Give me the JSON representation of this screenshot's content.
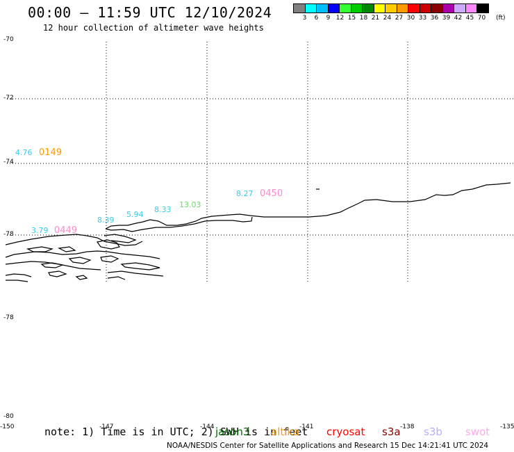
{
  "header": {
    "title": "00:00 – 11:59 UTC 12/10/2024",
    "subtitle": "12 hour collection of altimeter wave heights"
  },
  "scale": {
    "colors": [
      "#808080",
      "#00ffff",
      "#00bfff",
      "#0000ff",
      "#33ff33",
      "#00cc00",
      "#008800",
      "#ffff00",
      "#ffcc00",
      "#ff9900",
      "#ff0000",
      "#cc0000",
      "#880000",
      "#aa00aa",
      "#ccaaff",
      "#ff88ff",
      "#000000"
    ],
    "labels": [
      "3",
      "6",
      "9",
      "12",
      "15",
      "18",
      "21",
      "24",
      "27",
      "30",
      "33",
      "36",
      "39",
      "42",
      "45",
      "70"
    ],
    "unit": "(ft)"
  },
  "axes": {
    "lat_labels": [
      "-70",
      "-72",
      "-74",
      "-78",
      "-78",
      "-80"
    ],
    "lon_labels": [
      "-150",
      "-147",
      "-144",
      "-141",
      "-138",
      "-135"
    ]
  },
  "observations": [
    {
      "text": "4.76",
      "color": "#33ccee"
    },
    {
      "text": "0149",
      "color": "#ff9900"
    },
    {
      "text": "8.27",
      "color": "#33ccee"
    },
    {
      "text": "0450",
      "color": "#ff88cc"
    },
    {
      "text": "13.03",
      "color": "#66dd66"
    },
    {
      "text": "8.33",
      "color": "#33ccee"
    },
    {
      "text": "5.94",
      "color": "#33ccee"
    },
    {
      "text": "8.39",
      "color": "#33ccee"
    },
    {
      "text": "3.79",
      "color": "#33ccee"
    },
    {
      "text": "0449",
      "color": "#ff88cc"
    }
  ],
  "note": "note: 1) Time is in UTC; 2) SWH is in feet",
  "legend": [
    {
      "label": "jason3",
      "color": "#006600"
    },
    {
      "label": "altika",
      "color": "#ff9900"
    },
    {
      "label": "cryosat",
      "color": "#ff0000"
    },
    {
      "label": "s3a",
      "color": "#880000"
    },
    {
      "label": "s3b",
      "color": "#bbaaff"
    },
    {
      "label": "swot",
      "color": "#ffaaee"
    }
  ],
  "footer": "NOAA/NESDIS Center for Satellite Applications and Research    15 Dec 14:21:41 UTC 2024"
}
